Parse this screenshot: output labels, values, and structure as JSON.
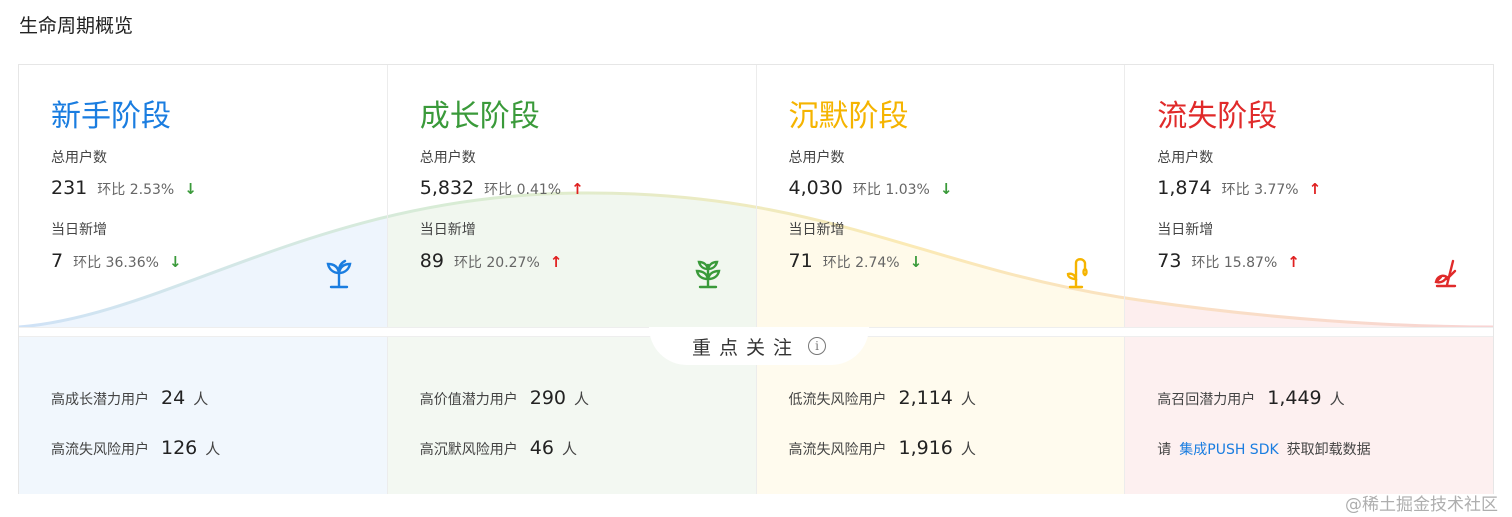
{
  "title": "生命周期概览",
  "colors": {
    "new": "#1a7de0",
    "growth": "#3a9a3a",
    "silent": "#f5b400",
    "lost": "#e02a2a"
  },
  "stages": [
    {
      "name": "新手阶段",
      "icon": "sprout-icon",
      "total_label": "总用户数",
      "total": "231",
      "total_ratio": "环比 2.53%",
      "total_trend": "down",
      "new_label": "当日新增",
      "new": "7",
      "new_ratio": "环比 36.36%",
      "new_trend": "down"
    },
    {
      "name": "成长阶段",
      "icon": "plant-icon",
      "total_label": "总用户数",
      "total": "5,832",
      "total_ratio": "环比 0.41%",
      "total_trend": "up",
      "new_label": "当日新增",
      "new": "89",
      "new_ratio": "环比 20.27%",
      "new_trend": "up"
    },
    {
      "name": "沉默阶段",
      "icon": "drooping-plant-icon",
      "total_label": "总用户数",
      "total": "4,030",
      "total_ratio": "环比 1.03%",
      "total_trend": "down",
      "new_label": "当日新增",
      "new": "71",
      "new_ratio": "环比 2.74%",
      "new_trend": "down"
    },
    {
      "name": "流失阶段",
      "icon": "withered-plant-icon",
      "total_label": "总用户数",
      "total": "1,874",
      "total_ratio": "环比 3.77%",
      "total_trend": "up",
      "new_label": "当日新增",
      "new": "73",
      "new_ratio": "环比 15.87%",
      "new_trend": "up"
    }
  ],
  "focus": {
    "label": "重点关注",
    "info_icon": "info-icon"
  },
  "focus_rows": [
    [
      {
        "label": "高成长潜力用户",
        "value": "24",
        "unit": "人"
      },
      {
        "label": "高流失风险用户",
        "value": "126",
        "unit": "人"
      }
    ],
    [
      {
        "label": "高价值潜力用户",
        "value": "290",
        "unit": "人"
      },
      {
        "label": "高沉默风险用户",
        "value": "46",
        "unit": "人"
      }
    ],
    [
      {
        "label": "低流失风险用户",
        "value": "2,114",
        "unit": "人"
      },
      {
        "label": "高流失风险用户",
        "value": "1,916",
        "unit": "人"
      }
    ],
    [
      {
        "label": "高召回潜力用户",
        "value": "1,449",
        "unit": "人"
      }
    ]
  ],
  "sdk_hint": {
    "prefix": "请",
    "link": "集成PUSH SDK",
    "suffix": "获取卸载数据"
  },
  "watermark": "@稀土掘金技术社区",
  "arrows": {
    "up": "↑",
    "down": "↓"
  }
}
